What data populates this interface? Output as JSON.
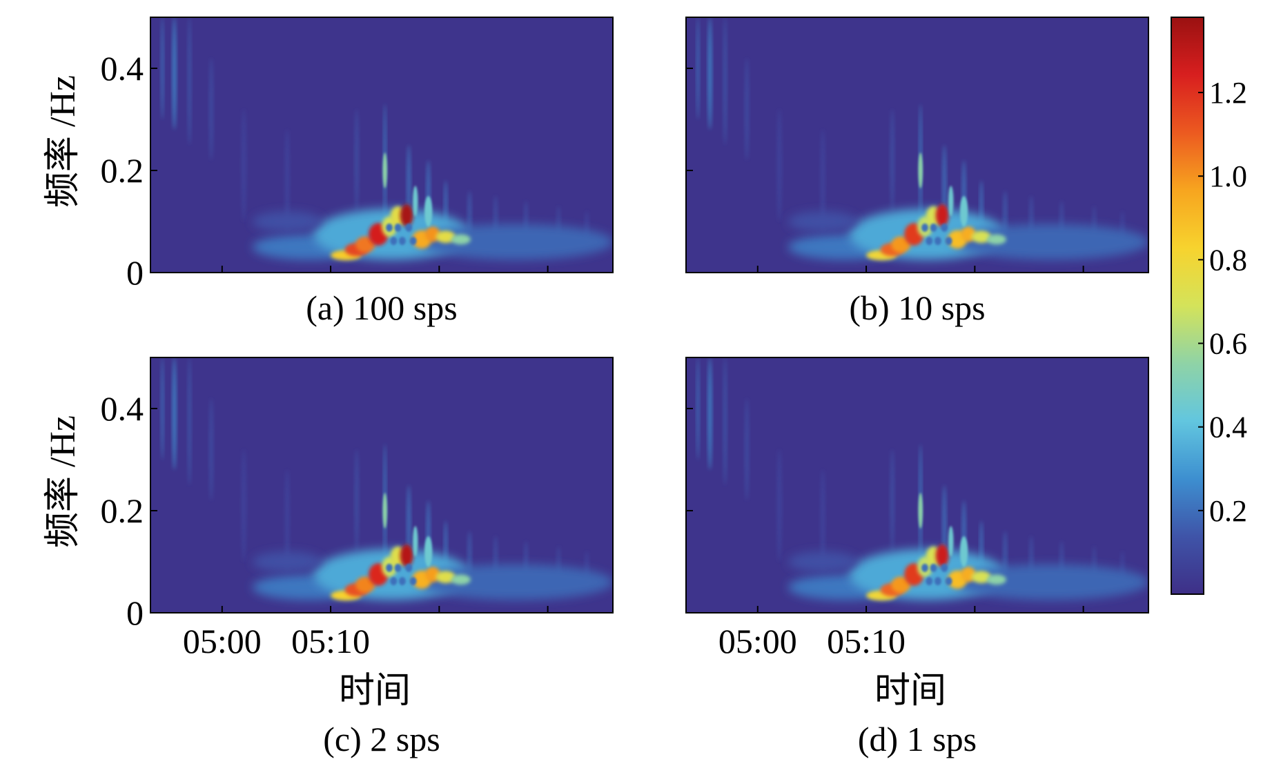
{
  "figure": {
    "colorbar": {
      "ticks": [
        0.2,
        0.4,
        0.6,
        0.8,
        1.0,
        1.2
      ],
      "tick_labels": [
        "0.2",
        "0.4",
        "0.6",
        "0.8",
        "1.0",
        "1.2"
      ],
      "range": [
        0,
        1.38
      ],
      "colormap": [
        "#3e2f87",
        "#3f54a8",
        "#3d8fd0",
        "#62c6df",
        "#8fd3a6",
        "#d4e35a",
        "#f7d32e",
        "#f7a51f",
        "#ec5a20",
        "#d81f1f",
        "#9a1111"
      ]
    }
  },
  "chart_data": [
    {
      "type": "heatmap",
      "panel": "a",
      "caption": "(a) 100 sps",
      "ylabel": "频率 /Hz",
      "xlabel": "",
      "ylim": [
        0,
        0.5
      ],
      "yticks": [
        0,
        0.2,
        0.4
      ],
      "ytick_labels": [
        "0",
        "0.2",
        "0.4"
      ],
      "xlim_minutes": [
        -3.3,
        18
      ],
      "xticks_minutes": [
        0,
        5,
        10,
        15
      ],
      "xtick_labels": [],
      "peak_value": 1.38,
      "show_ylabels": true,
      "show_xlabels": false
    },
    {
      "type": "heatmap",
      "panel": "b",
      "caption": "(b) 10 sps",
      "ylabel": "",
      "xlabel": "",
      "ylim": [
        0,
        0.5
      ],
      "yticks": [
        0,
        0.2,
        0.4
      ],
      "ytick_labels": [],
      "xlim_minutes": [
        -3.3,
        18
      ],
      "xticks_minutes": [
        0,
        5,
        10,
        15
      ],
      "xtick_labels": [],
      "peak_value": 1.3,
      "show_ylabels": false,
      "show_xlabels": false
    },
    {
      "type": "heatmap",
      "panel": "c",
      "caption": "(c) 2 sps",
      "ylabel": "频率 /Hz",
      "xlabel": "时间",
      "ylim": [
        0,
        0.5
      ],
      "yticks": [
        0,
        0.2,
        0.4
      ],
      "ytick_labels": [
        "0",
        "0.2",
        "0.4"
      ],
      "xlim_minutes": [
        -3.3,
        18
      ],
      "xticks_minutes": [
        0,
        5,
        10,
        15
      ],
      "xtick_labels": [
        "05:00",
        "05:10"
      ],
      "peak_value": 1.35,
      "show_ylabels": true,
      "show_xlabels": true
    },
    {
      "type": "heatmap",
      "panel": "d",
      "caption": "(d) 1 sps",
      "ylabel": "",
      "xlabel": "时间",
      "ylim": [
        0,
        0.5
      ],
      "yticks": [
        0,
        0.2,
        0.4
      ],
      "ytick_labels": [],
      "xlim_minutes": [
        -3.3,
        18
      ],
      "xticks_minutes": [
        0,
        5,
        10,
        15
      ],
      "xtick_labels": [
        "05:00",
        "05:10"
      ],
      "peak_value": 1.3,
      "show_ylabels": false,
      "show_xlabels": true
    }
  ]
}
